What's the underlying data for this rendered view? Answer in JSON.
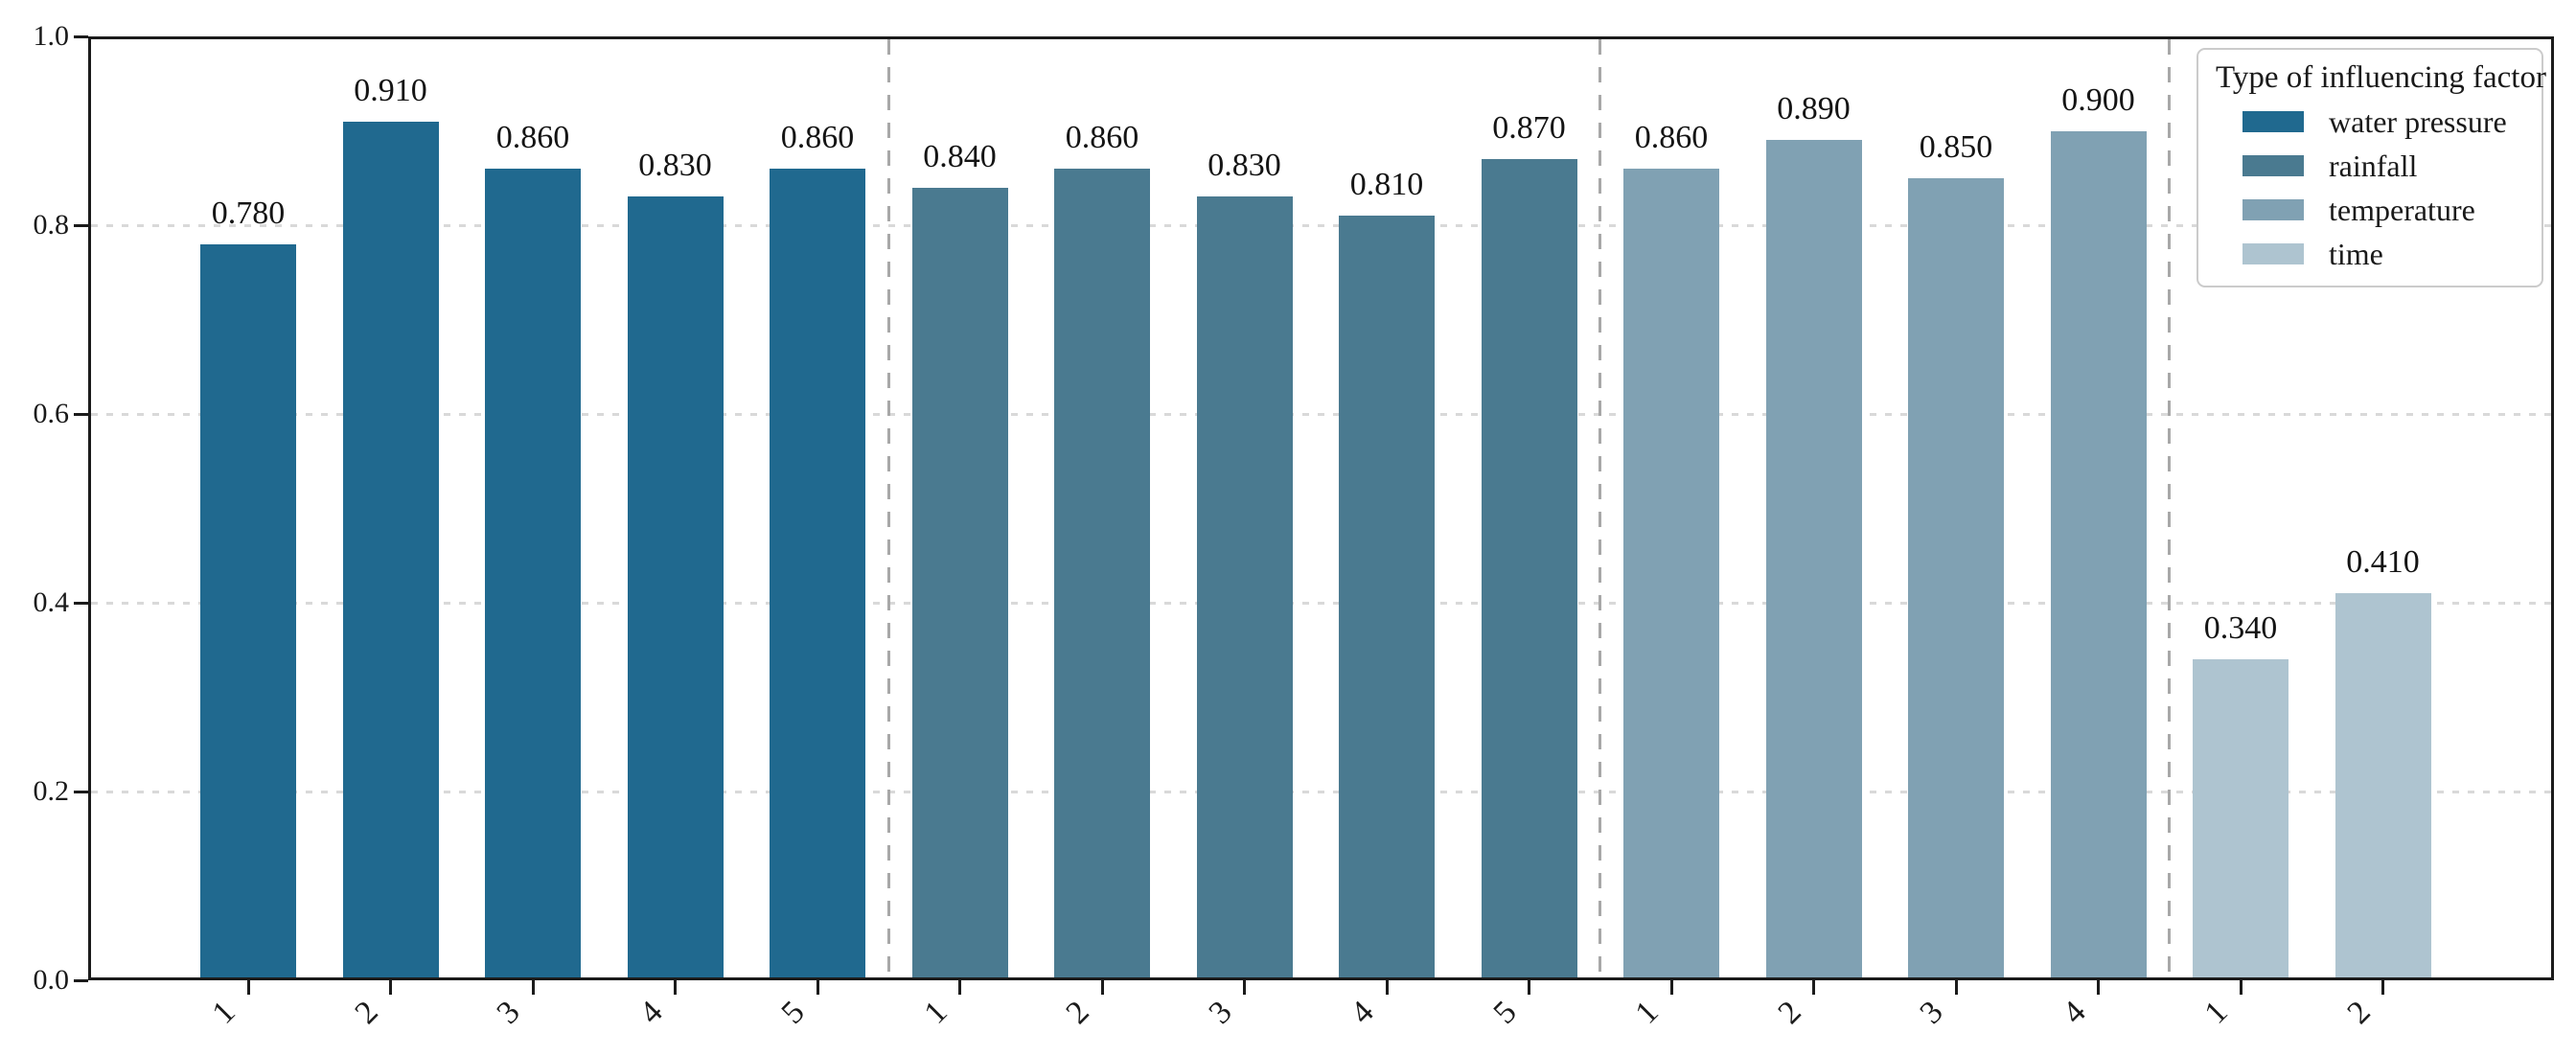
{
  "chart_data": {
    "type": "bar",
    "title": "",
    "xlabel": "",
    "ylabel": "",
    "ylim": [
      0.0,
      1.0
    ],
    "ytick_labels": [
      "0.0",
      "0.2",
      "0.4",
      "0.6",
      "0.8",
      "1.0"
    ],
    "grid": "horizontal dashed lines at 0.2, 0.4, 0.6, 0.8",
    "separators": "dashed vertical lines between factor groups",
    "legend": {
      "title": "Type of influencing factor",
      "position": "upper right"
    },
    "groups": [
      {
        "name": "water pressure",
        "color": "#20698F",
        "categories": [
          "1",
          "2",
          "3",
          "4",
          "5"
        ],
        "values": [
          0.78,
          0.91,
          0.86,
          0.83,
          0.86
        ],
        "bar_labels": [
          "0.780",
          "0.910",
          "0.860",
          "0.830",
          "0.860"
        ]
      },
      {
        "name": "rainfall",
        "color": "#4A7A90",
        "categories": [
          "1",
          "2",
          "3",
          "4",
          "5"
        ],
        "values": [
          0.84,
          0.86,
          0.83,
          0.81,
          0.87
        ],
        "bar_labels": [
          "0.840",
          "0.860",
          "0.830",
          "0.810",
          "0.870"
        ]
      },
      {
        "name": "temperature",
        "color": "#80A1B3",
        "categories": [
          "1",
          "2",
          "3",
          "4"
        ],
        "values": [
          0.86,
          0.89,
          0.85,
          0.9
        ],
        "bar_labels": [
          "0.860",
          "0.890",
          "0.850",
          "0.900"
        ]
      },
      {
        "name": "time",
        "color": "#AEC4D0",
        "categories": [
          "1",
          "2"
        ],
        "values": [
          0.34,
          0.41
        ],
        "bar_labels": [
          "0.340",
          "0.410"
        ]
      }
    ]
  }
}
